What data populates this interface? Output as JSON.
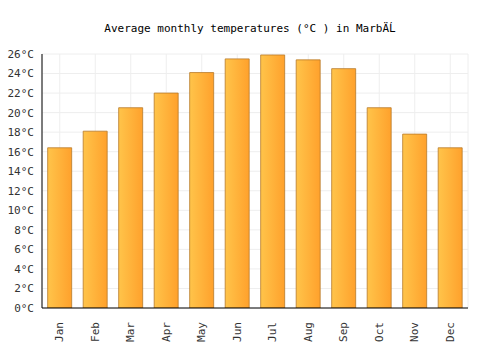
{
  "chart_data": {
    "type": "bar",
    "title": "Average monthly temperatures (°C ) in MarbÄĹ",
    "categories": [
      "Jan",
      "Feb",
      "Mar",
      "Apr",
      "May",
      "Jun",
      "Jul",
      "Aug",
      "Sep",
      "Oct",
      "Nov",
      "Dec"
    ],
    "values": [
      16.4,
      18.1,
      20.5,
      22.0,
      24.1,
      25.5,
      25.9,
      25.4,
      24.5,
      20.5,
      17.8,
      16.4
    ],
    "color": "#ffa12c",
    "ylim": [
      0,
      26
    ],
    "yticks": [
      {
        "value": 0,
        "label": "0°C"
      },
      {
        "value": 2,
        "label": "2°C"
      },
      {
        "value": 4,
        "label": "4°C"
      },
      {
        "value": 6,
        "label": "6°C"
      },
      {
        "value": 8,
        "label": "8°C"
      },
      {
        "value": 10,
        "label": "10°C"
      },
      {
        "value": 12,
        "label": "12°C"
      },
      {
        "value": 14,
        "label": "14°C"
      },
      {
        "value": 16,
        "label": "16°C"
      },
      {
        "value": 18,
        "label": "18°C"
      },
      {
        "value": 20,
        "label": "20°C"
      },
      {
        "value": 22,
        "label": "22°C"
      },
      {
        "value": 24,
        "label": "24°C"
      },
      {
        "value": 26,
        "label": "26°C"
      }
    ],
    "grid": true
  }
}
